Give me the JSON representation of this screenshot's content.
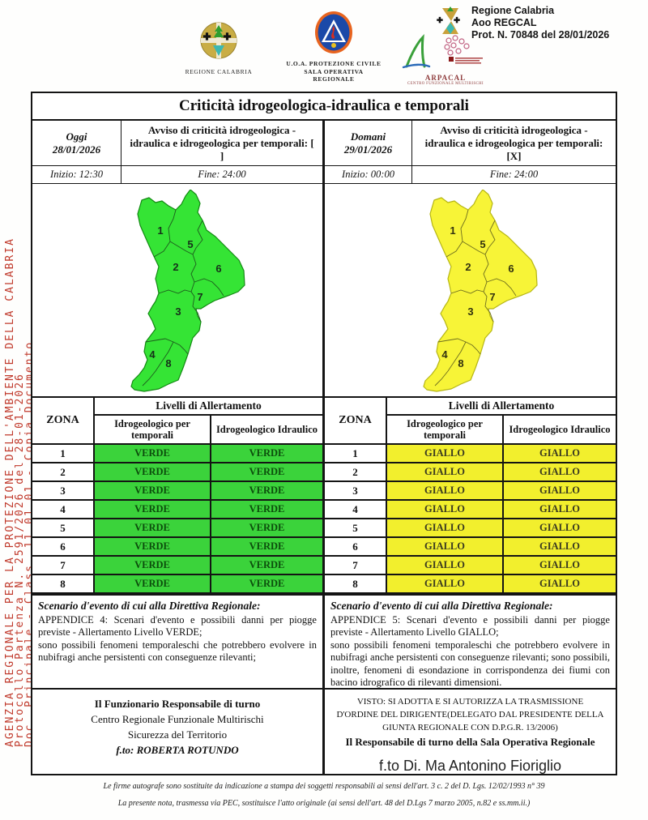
{
  "page": {
    "header": {
      "regione_logo_label": "REGIONE CALABRIA",
      "pc_logo_label1": "U.O.A. PROTEZIONE CIVILE",
      "pc_logo_label2": "SALA OPERATIVA REGIONALE",
      "arpacal_label": "ARPACAL",
      "arpacal_sublabel": "CENTRO FUNZIONALE MULTIRISCHI",
      "stamp_line1": "Regione Calabria",
      "stamp_line2": "Aoo REGCAL",
      "stamp_line3": "Prot. N. 70848 del 28/01/2026"
    },
    "side_stamp": {
      "line1": "AGENZIA REGIONALE PER LA PROTEZIONE DELL'AMBIENTE DELLA CALABRIA",
      "line2": "Protocollo Partenza N. 2591/2026 del 28-01-2026",
      "line3": "Doc. Principale - Class. 11.01.01 - Copia Documento",
      "color": "#c0392b"
    },
    "title": "Criticità idrogeologica-idraulica e temporali",
    "alert_headers": {
      "zona": "ZONA",
      "group": "Livelli di Allertamento",
      "col1": "Idrogeologico per temporali",
      "col2": "Idrogeologico Idraulico"
    },
    "map_zone_numbers": [
      "1",
      "5",
      "2",
      "6",
      "7",
      "3",
      "4",
      "8"
    ],
    "columns": {
      "today": {
        "day_label": "Oggi",
        "date": "28/01/2026",
        "avviso": "Avviso di criticità idrogeologica - idraulica e idrogeologica per temporali: [  ]",
        "inizio": "Inizio: 12:30",
        "fine": "Fine: 24:00",
        "map_fill": "#35e435",
        "map_stroke": "#128912",
        "alert_fill": "#3bd33b",
        "level": "VERDE",
        "zones": [
          {
            "zona": "1",
            "temporali": "VERDE",
            "idraulico": "VERDE"
          },
          {
            "zona": "2",
            "temporali": "VERDE",
            "idraulico": "VERDE"
          },
          {
            "zona": "3",
            "temporali": "VERDE",
            "idraulico": "VERDE"
          },
          {
            "zona": "4",
            "temporali": "VERDE",
            "idraulico": "VERDE"
          },
          {
            "zona": "5",
            "temporali": "VERDE",
            "idraulico": "VERDE"
          },
          {
            "zona": "6",
            "temporali": "VERDE",
            "idraulico": "VERDE"
          },
          {
            "zona": "7",
            "temporali": "VERDE",
            "idraulico": "VERDE"
          },
          {
            "zona": "8",
            "temporali": "VERDE",
            "idraulico": "VERDE"
          }
        ],
        "scenario_heading": "Scenario d'evento di cui alla Direttiva Regionale:",
        "scenario_line1": "APPENDICE 4: Scenari d'evento e possibili danni per piogge previste - Allertamento Livello VERDE;",
        "scenario_line2": "sono possibili fenomeni temporaleschi che potrebbero evolvere in nubifragi anche persistenti con conseguenze rilevanti;",
        "sign_line1": "Il Funzionario Responsabile di turno",
        "sign_line2": "Centro Regionale Funzionale Multirischi",
        "sign_line3": "Sicurezza del Territorio",
        "sign_line4": "f.to: ROBERTA ROTUNDO"
      },
      "tomorrow": {
        "day_label": "Domani",
        "date": "29/01/2026",
        "avviso": "Avviso di criticità idrogeologica - idraulica e idrogeologica per temporali: [X]",
        "inizio": "Inizio: 00:00",
        "fine": "Fine: 24:00",
        "map_fill": "#f7f437",
        "map_stroke": "#b5b513",
        "alert_fill": "#f2ef2d",
        "level": "GIALLO",
        "zones": [
          {
            "zona": "1",
            "temporali": "GIALLO",
            "idraulico": "GIALLO"
          },
          {
            "zona": "2",
            "temporali": "GIALLO",
            "idraulico": "GIALLO"
          },
          {
            "zona": "3",
            "temporali": "GIALLO",
            "idraulico": "GIALLO"
          },
          {
            "zona": "4",
            "temporali": "GIALLO",
            "idraulico": "GIALLO"
          },
          {
            "zona": "5",
            "temporali": "GIALLO",
            "idraulico": "GIALLO"
          },
          {
            "zona": "6",
            "temporali": "GIALLO",
            "idraulico": "GIALLO"
          },
          {
            "zona": "7",
            "temporali": "GIALLO",
            "idraulico": "GIALLO"
          },
          {
            "zona": "8",
            "temporali": "GIALLO",
            "idraulico": "GIALLO"
          }
        ],
        "scenario_heading": "Scenario d'evento di cui alla Direttiva Regionale:",
        "scenario_line1": "APPENDICE 5: Scenari d'evento e possibili danni per piogge previste - Allertamento Livello GIALLO;",
        "scenario_line2": "sono possibili fenomeni temporaleschi che potrebbero evolvere in nubifragi anche persistenti con conseguenze rilevanti; sono possibili, inoltre, fenomeni di esondazione in corrispondenza dei fiumi con bacino idrografico di rilevanti dimensioni.",
        "visto": "VISTO: SI ADOTTA E SI AUTORIZZA LA TRASMISSIONE D'ORDINE DEL DIRIGENTE(DELEGATO DAL PRESIDENTE DELLA GIUNTA REGIONALE CON D.P.G.R. 13/2006)",
        "responsabile": "Il Responsabile di turno della Sala Operativa Regionale",
        "firma": "f.to Di. Ma Antonino Fioriglio"
      }
    },
    "footer_line1": "Le firme autografe sono sostituite da indicazione a stampa dei soggetti responsabili ai sensi dell'art. 3 c. 2 del D. Lgs. 12/02/1993 n° 39",
    "footer_line2": "La presente nota, trasmessa via PEC, sostituisce l'atto originale (ai sensi dell'art. 48 del D.Lgs 7 marzo 2005, n.82 e ss.mm.ii.)"
  }
}
